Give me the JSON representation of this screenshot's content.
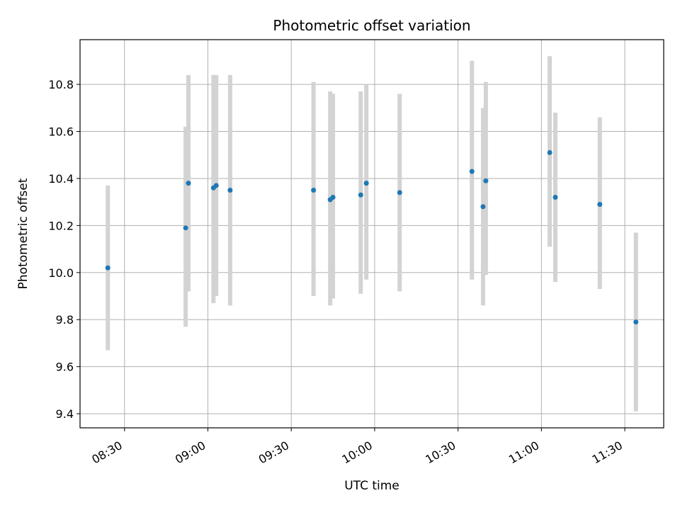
{
  "chart_data": {
    "type": "scatter",
    "title": "Photometric offset variation",
    "xlabel": "UTC time",
    "ylabel": "Photometric offset",
    "x_ticks": [
      "08:30",
      "09:00",
      "09:30",
      "10:00",
      "10:30",
      "11:00",
      "11:30"
    ],
    "y_ticks": [
      "9.4",
      "9.6",
      "9.8",
      "10.0",
      "10.2",
      "10.4",
      "10.6",
      "10.8"
    ],
    "xlim": [
      "08:14",
      "11:44"
    ],
    "ylim": [
      9.34,
      10.99
    ],
    "grid": true,
    "colors": {
      "point": "#1f77b4",
      "errorbar": "#d3d3d3",
      "grid": "#b0b0b0"
    },
    "points": [
      {
        "x": "08:24",
        "y": 10.02,
        "err_low": 9.67,
        "err_high": 10.37
      },
      {
        "x": "08:52",
        "y": 10.19,
        "err_low": 9.77,
        "err_high": 10.62
      },
      {
        "x": "08:53",
        "y": 10.38,
        "err_low": 9.92,
        "err_high": 10.84
      },
      {
        "x": "09:02",
        "y": 10.36,
        "err_low": 9.87,
        "err_high": 10.84
      },
      {
        "x": "09:03",
        "y": 10.37,
        "err_low": 9.9,
        "err_high": 10.84
      },
      {
        "x": "09:08",
        "y": 10.35,
        "err_low": 9.86,
        "err_high": 10.84
      },
      {
        "x": "09:38",
        "y": 10.35,
        "err_low": 9.9,
        "err_high": 10.81
      },
      {
        "x": "09:44",
        "y": 10.31,
        "err_low": 9.86,
        "err_high": 10.77
      },
      {
        "x": "09:45",
        "y": 10.32,
        "err_low": 9.89,
        "err_high": 10.76
      },
      {
        "x": "09:55",
        "y": 10.33,
        "err_low": 9.91,
        "err_high": 10.77
      },
      {
        "x": "09:57",
        "y": 10.38,
        "err_low": 9.97,
        "err_high": 10.8
      },
      {
        "x": "10:09",
        "y": 10.34,
        "err_low": 9.92,
        "err_high": 10.76
      },
      {
        "x": "10:35",
        "y": 10.43,
        "err_low": 9.97,
        "err_high": 10.9
      },
      {
        "x": "10:39",
        "y": 10.28,
        "err_low": 9.86,
        "err_high": 10.7
      },
      {
        "x": "10:40",
        "y": 10.39,
        "err_low": 9.99,
        "err_high": 10.81
      },
      {
        "x": "11:03",
        "y": 10.51,
        "err_low": 10.11,
        "err_high": 10.92
      },
      {
        "x": "11:05",
        "y": 10.32,
        "err_low": 9.96,
        "err_high": 10.68
      },
      {
        "x": "11:21",
        "y": 10.29,
        "err_low": 9.93,
        "err_high": 10.66
      },
      {
        "x": "11:34",
        "y": 9.79,
        "err_low": 9.41,
        "err_high": 10.17
      }
    ]
  }
}
